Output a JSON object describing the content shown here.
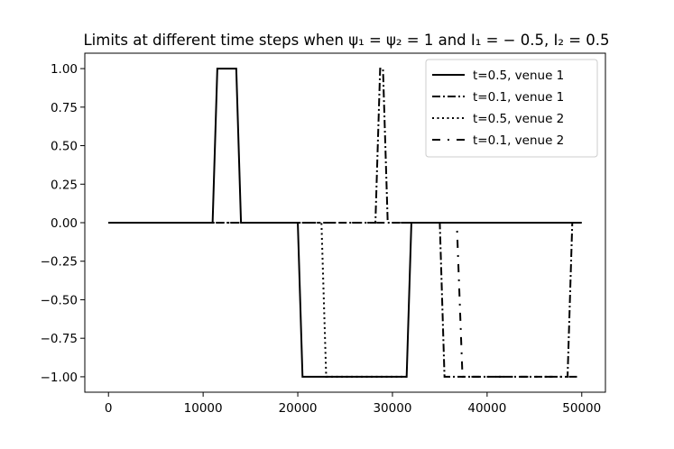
{
  "chart_data": {
    "type": "line",
    "title": "Limits at different time steps when ψ₁ = ψ₂ = 1 and I₁ = − 0.5, I₂ = 0.5",
    "xlabel": "",
    "ylabel": "",
    "xlim": [
      -2500,
      52500
    ],
    "ylim": [
      -1.1,
      1.1
    ],
    "x_ticks": [
      0,
      10000,
      20000,
      30000,
      40000,
      50000
    ],
    "y_ticks": [
      1.0,
      0.75,
      0.5,
      0.25,
      0.0,
      -0.25,
      -0.5,
      -0.75,
      -1.0
    ],
    "x_tick_labels": [
      "0",
      "10000",
      "20000",
      "30000",
      "40000",
      "50000"
    ],
    "y_tick_labels": [
      "1.00",
      "0.75",
      "0.50",
      "0.25",
      "0.00",
      "−0.25",
      "−0.50",
      "−0.75",
      "−1.00"
    ],
    "grid": false,
    "legend": "top-right",
    "series": [
      {
        "name": "t=0.5, venue 1",
        "style": "solid",
        "color": "#000000",
        "x": [
          0,
          11000,
          11500,
          13500,
          14000,
          20000,
          20500,
          31500,
          32000,
          50000
        ],
        "y": [
          0,
          0,
          1,
          1,
          0,
          0,
          -1,
          -1,
          0,
          0
        ]
      },
      {
        "name": "t=0.1, venue 1",
        "style": "dashdot",
        "color": "#000000",
        "x": [
          0,
          28200,
          28700,
          29000,
          29500,
          35000,
          35500,
          48500,
          49000,
          50000
        ],
        "y": [
          0,
          0,
          1,
          1,
          0,
          0,
          -1,
          -1,
          0,
          0
        ]
      },
      {
        "name": "t=0.5, venue 2",
        "style": "dotted",
        "color": "#000000",
        "x": [
          0,
          22500,
          23000,
          31500
        ],
        "y": [
          0,
          0,
          -1,
          -1
        ]
      },
      {
        "name": "t=0.1, venue 2",
        "style": "loosedashdot",
        "color": "#000000",
        "x": [
          0,
          36800,
          37400,
          50000
        ],
        "y": [
          0,
          0,
          -1,
          -1
        ]
      }
    ]
  }
}
